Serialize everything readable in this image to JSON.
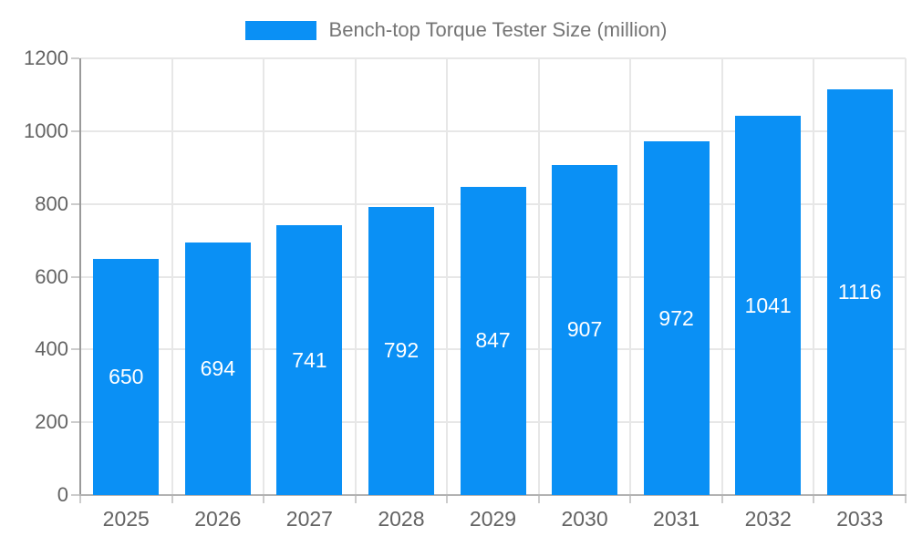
{
  "legend": {
    "label": "Bench-top Torque Tester Size (million)"
  },
  "colors": {
    "bar": "#0a90f5",
    "bar_label_text": "#ffffff",
    "gridline": "#e7e7e7",
    "axis_line": "#9a9a9a",
    "baseline": "#b2b2b2",
    "tick": "#cccccc",
    "axis_text": "#636363",
    "legend_text": "#757575",
    "background": "#ffffff"
  },
  "chart_data": {
    "type": "bar",
    "title": "Bench-top Torque Tester Size (million)",
    "categories": [
      "2025",
      "2026",
      "2027",
      "2028",
      "2029",
      "2030",
      "2031",
      "2032",
      "2033"
    ],
    "values": [
      650,
      694,
      741,
      792,
      847,
      907,
      972,
      1041,
      1116
    ],
    "series_name": "Bench-top Torque Tester Size (million)",
    "xlabel": "",
    "ylabel": "",
    "ylim": [
      0,
      1200
    ],
    "yticks": [
      0,
      200,
      400,
      600,
      800,
      1000,
      1200
    ],
    "grid": true,
    "legend_position": "top-center",
    "value_labels": "inside-center"
  }
}
